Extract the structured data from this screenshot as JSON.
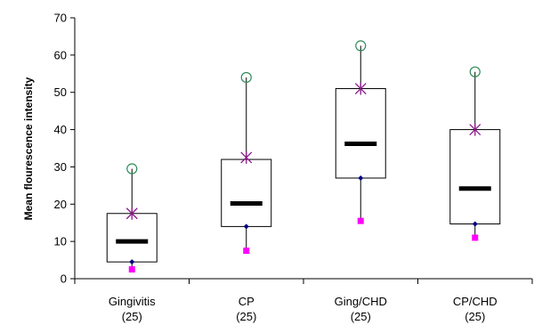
{
  "chart_data": {
    "type": "box",
    "ylabel": "Mean flourescence  intensity",
    "ylim": [
      0,
      70
    ],
    "yticks": [
      0,
      10,
      20,
      30,
      40,
      50,
      60,
      70
    ],
    "categories": [
      {
        "name": "Gingivitis",
        "n": "(25)"
      },
      {
        "name": "CP",
        "n": "(25)"
      },
      {
        "name": "Ging/CHD",
        "n": "(25)"
      },
      {
        "name": "CP/CHD",
        "n": "(25)"
      }
    ],
    "boxes": [
      {
        "max": 29.5,
        "p90": 17.5,
        "q3": 17.5,
        "median": 10,
        "q1": 4.5,
        "p10": 4.5,
        "min": 2.5
      },
      {
        "max": 54,
        "p90": 32.5,
        "q3": 32,
        "median": 20.2,
        "q1": 14,
        "p10": 14,
        "min": 7.5
      },
      {
        "max": 62.5,
        "p90": 51,
        "q3": 51,
        "median": 36.2,
        "q1": 27,
        "p10": 27,
        "min": 15.5
      },
      {
        "max": 55.5,
        "p90": 40,
        "q3": 40,
        "median": 24.2,
        "q1": 14.7,
        "p10": 14.7,
        "min": 11
      }
    ],
    "colors": {
      "max_marker": "#2e8b57",
      "p90_marker": "#8b1a8b",
      "p10_marker": "#000080",
      "min_marker": "#ff00ff",
      "median": "#000000"
    },
    "grid": false
  }
}
